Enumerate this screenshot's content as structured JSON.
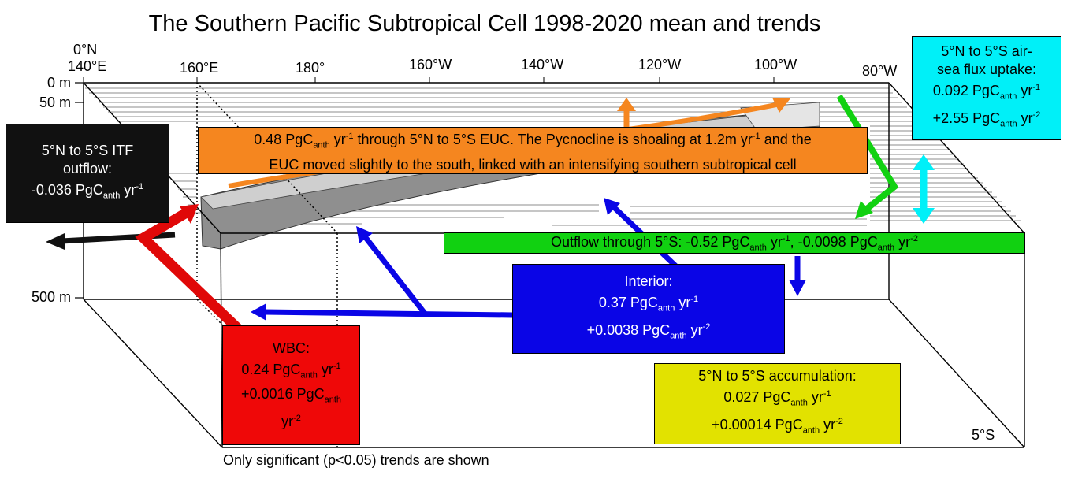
{
  "title": "The Southern Pacific Subtropical Cell 1998-2020 mean and trends",
  "latitude_top": "0°N",
  "latitude_bottom": "5°S",
  "longitudes": [
    "140°E",
    "160°E",
    "180°",
    "160°W",
    "140°W",
    "120°W",
    "100°W",
    "80°W"
  ],
  "depths": [
    "0 m",
    "50 m",
    "500 m"
  ],
  "footnote": "Only significant (p<0.05) trends are shown",
  "units": {
    "base": "PgC",
    "sub": "anth",
    "yr": "yr",
    "sup1": "-1",
    "sup2": "-2"
  },
  "boxes": {
    "itf": {
      "title_line1": "5°N to 5°S ITF",
      "title_line2": "outflow:",
      "mean": "-0.036",
      "color": "#111111"
    },
    "euc": {
      "mean": "0.48",
      "text_a": "through 5°N to 5°S EUC. The Pycnocline is shoaling at 1.2m",
      "text_b": "and the",
      "text_c": "EUC moved slightly to the south, linked with an intensifying southern subtropical cell",
      "color": "#f5861f"
    },
    "airsea": {
      "title_line1": "5°N to 5°S air-",
      "title_line2": "sea flux uptake:",
      "mean": "0.092",
      "trend": "+2.55",
      "color": "#00f0f8"
    },
    "outflow": {
      "text_a": "Outflow through 5°S:",
      "mean": "-0.52",
      "trend": "-0.0098",
      "color": "#11d111"
    },
    "interior": {
      "title": "Interior:",
      "mean": "0.37",
      "trend": "+0.0038",
      "color": "#0a05e6"
    },
    "wbc": {
      "title": "WBC:",
      "mean": "0.24",
      "trend": "+0.0016",
      "color": "#ef0808"
    },
    "accumulation": {
      "title": "5°N to 5°S accumulation:",
      "mean": "0.027",
      "trend": "+0.00014",
      "color": "#e2e200"
    }
  }
}
